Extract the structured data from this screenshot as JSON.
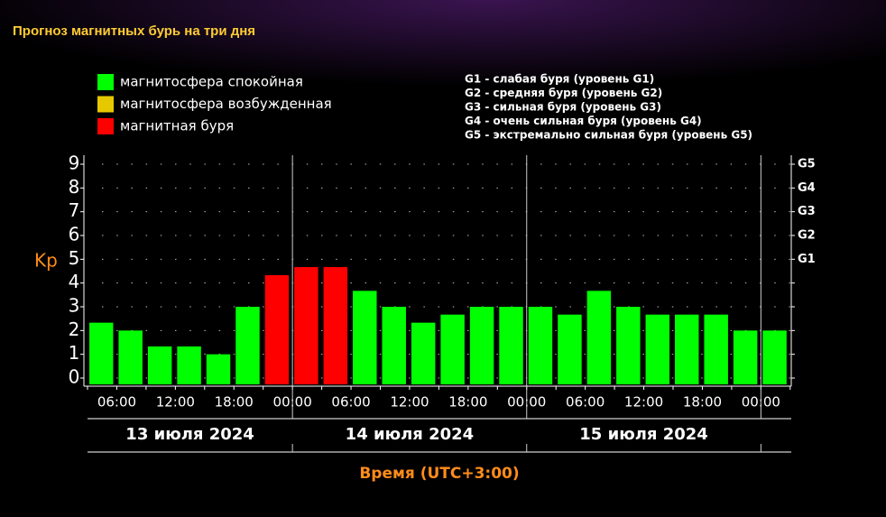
{
  "chart_data": {
    "type": "bar",
    "title": "Прогноз магнитных бурь на три дня",
    "legend": [
      {
        "name": "магнитосфера спокойная",
        "color": "#00ff00"
      },
      {
        "name": "магнитосфера возбужденная",
        "color": "#e6c800"
      },
      {
        "name": "магнитная буря",
        "color": "#ff0000"
      }
    ],
    "storm_levels": [
      "G1 - слабая буря (уровень G1)",
      "G2 - средняя буря (уровень G2)",
      "G3 - сильная буря (уровень G3)",
      "G4 - очень сильная буря (уровень G4)",
      "G5 - экстремально сильная буря (уровень G5)"
    ],
    "ylabel": "Kp",
    "xlabel": "Время (UTC+3:00)",
    "ylim": [
      0,
      9
    ],
    "yticks": [
      0,
      1,
      2,
      3,
      4,
      5,
      6,
      7,
      8,
      9
    ],
    "y2ticks": [
      {
        "value": 5,
        "label": "G1"
      },
      {
        "value": 6,
        "label": "G2"
      },
      {
        "value": 7,
        "label": "G3"
      },
      {
        "value": 8,
        "label": "G4"
      },
      {
        "value": 9,
        "label": "G5"
      }
    ],
    "grid": true,
    "xtick_labels": [
      "06:00",
      "12:00",
      "18:00",
      "00:00",
      "06:00",
      "12:00",
      "18:00",
      "00:00",
      "06:00",
      "12:00",
      "18:00",
      "00:00"
    ],
    "days": [
      "13 июля 2024",
      "14 июля 2024",
      "15 июля 2024"
    ],
    "values": [
      2.33,
      2.0,
      1.33,
      1.33,
      1.0,
      3.0,
      4.33,
      4.67,
      4.67,
      3.67,
      3.0,
      2.33,
      2.67,
      3.0,
      3.0,
      3.0,
      2.67,
      3.67,
      3.0,
      2.67,
      2.67,
      2.67,
      2.0,
      2.0
    ],
    "colors": [
      "#00ff00",
      "#00ff00",
      "#00ff00",
      "#00ff00",
      "#00ff00",
      "#00ff00",
      "#ff0000",
      "#ff0000",
      "#ff0000",
      "#00ff00",
      "#00ff00",
      "#00ff00",
      "#00ff00",
      "#00ff00",
      "#00ff00",
      "#00ff00",
      "#00ff00",
      "#00ff00",
      "#00ff00",
      "#00ff00",
      "#00ff00",
      "#00ff00",
      "#00ff00",
      "#00ff00"
    ]
  }
}
